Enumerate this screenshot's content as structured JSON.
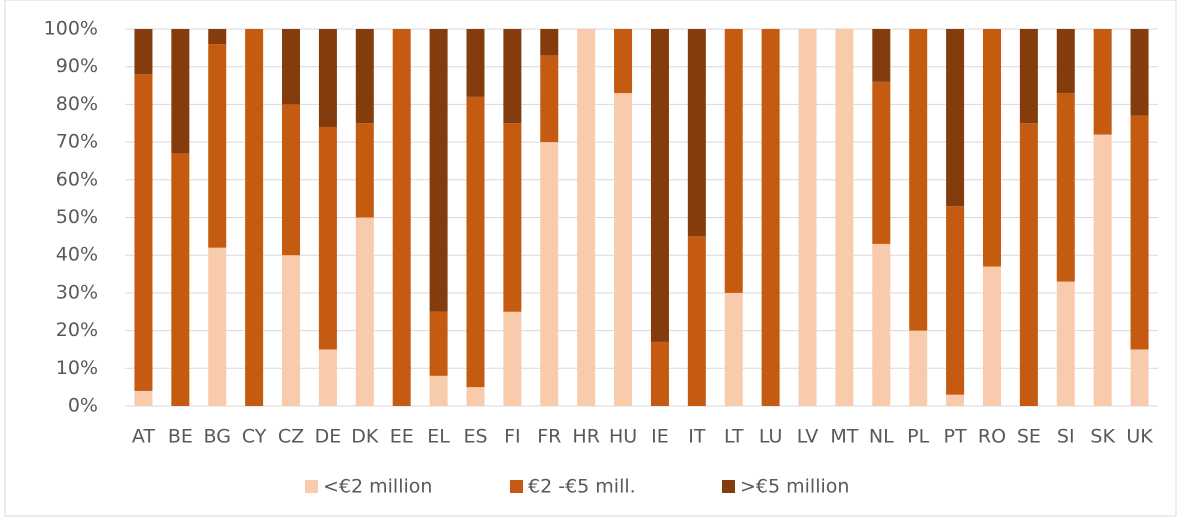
{
  "chart_data": {
    "type": "stacked_bar",
    "categories": [
      "AT",
      "BE",
      "BG",
      "CY",
      "CZ",
      "DE",
      "DK",
      "EE",
      "EL",
      "ES",
      "FI",
      "FR",
      "HR",
      "HU",
      "IE",
      "IT",
      "LT",
      "LU",
      "LV",
      "MT",
      "NL",
      "PL",
      "PT",
      "RO",
      "SE",
      "SI",
      "SK",
      "UK"
    ],
    "series": [
      {
        "name": "<€2 million",
        "color": "#f8cbad",
        "values": [
          4,
          0,
          42,
          0,
          40,
          15,
          50,
          0,
          8,
          5,
          25,
          70,
          100,
          83,
          0,
          0,
          30,
          0,
          100,
          100,
          43,
          20,
          3,
          37,
          0,
          33,
          72,
          15
        ]
      },
      {
        "name": "€2 -€5 mill.",
        "color": "#c55a11",
        "values": [
          84,
          67,
          54,
          100,
          40,
          59,
          25,
          100,
          17,
          77,
          50,
          23,
          0,
          17,
          17,
          45,
          70,
          100,
          0,
          0,
          43,
          80,
          50,
          63,
          75,
          50,
          28,
          62
        ]
      },
      {
        "name": ">€5 million",
        "color": "#843c0c",
        "values": [
          12,
          33,
          4,
          0,
          20,
          26,
          25,
          0,
          75,
          18,
          25,
          7,
          0,
          0,
          83,
          55,
          0,
          0,
          0,
          0,
          14,
          0,
          47,
          0,
          25,
          17,
          0,
          23
        ]
      }
    ],
    "ylim": [
      0,
      100
    ],
    "yticks": [
      {
        "value": 0,
        "label": "0%"
      },
      {
        "value": 10,
        "label": "10%"
      },
      {
        "value": 20,
        "label": "20%"
      },
      {
        "value": 30,
        "label": "30%"
      },
      {
        "value": 40,
        "label": "40%"
      },
      {
        "value": 50,
        "label": "50%"
      },
      {
        "value": 60,
        "label": "60%"
      },
      {
        "value": 70,
        "label": "70%"
      },
      {
        "value": 80,
        "label": "80%"
      },
      {
        "value": 90,
        "label": "90%"
      },
      {
        "value": 100,
        "label": "100%"
      }
    ],
    "grid": true,
    "legend": "bottom"
  }
}
